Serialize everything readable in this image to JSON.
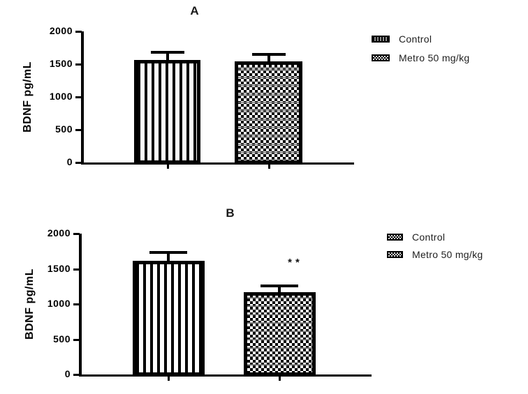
{
  "chart_data": [
    {
      "type": "bar",
      "title": "A",
      "ylabel": "BDNF pg/mL",
      "xlabel": "",
      "categories": [
        "Control",
        "Metro 50 mg/kg"
      ],
      "values": [
        1560,
        1545
      ],
      "errors_plus": [
        140,
        125
      ],
      "ylim": [
        0,
        2000
      ],
      "yticks": [
        0,
        500,
        1000,
        1500,
        2000
      ],
      "grid": "off",
      "bar_patterns": [
        "vertical-stripes",
        "checkerboard"
      ],
      "legend": {
        "position": "right",
        "entries": [
          {
            "label": "Control",
            "pattern": "vertical-stripes"
          },
          {
            "label": "Metro 50 mg/kg",
            "pattern": "checkerboard"
          }
        ]
      },
      "annotations": []
    },
    {
      "type": "bar",
      "title": "B",
      "ylabel": "BDNF pg/mL",
      "xlabel": "",
      "categories": [
        "Control",
        "Metro 50 mg/kg"
      ],
      "values": [
        1615,
        1170
      ],
      "errors_plus": [
        135,
        110
      ],
      "ylim": [
        0,
        2000
      ],
      "yticks": [
        0,
        500,
        1000,
        1500,
        2000
      ],
      "grid": "off",
      "bar_patterns": [
        "vertical-stripes",
        "checkerboard"
      ],
      "legend": {
        "position": "right",
        "entries": [
          {
            "label": "Control",
            "pattern": "vertical-stripes"
          },
          {
            "label": "Metro 50 mg/kg",
            "pattern": "checkerboard"
          }
        ]
      },
      "annotations": [
        {
          "text": "**",
          "bar": "Metro 50 mg/kg",
          "meaning_shown": "**"
        }
      ]
    }
  ]
}
